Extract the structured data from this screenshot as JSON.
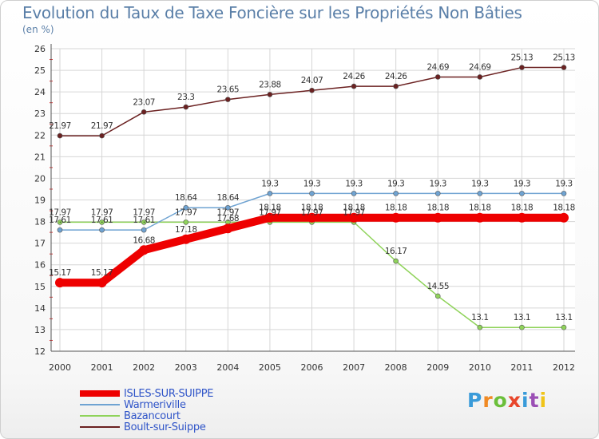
{
  "title": "Evolution du Taux de Taxe Foncière sur les Propriétés Non Bâties",
  "subtitle": "(en %)",
  "brand": {
    "text": "Proxiti",
    "colors": [
      "#3a9bd9",
      "#f08a24",
      "#6bbf3a",
      "#e8462b",
      "#3a9bd9",
      "#9b4fb5",
      "#f0c419"
    ]
  },
  "chart_data": {
    "type": "line",
    "title": "Evolution du Taux de Taxe Foncière sur les Propriétés Non Bâties",
    "ylabel": "(en %)",
    "xlabel": "",
    "ylim": [
      12,
      26
    ],
    "yticks": [
      "12",
      "13",
      "14",
      "15",
      "16",
      "17",
      "18",
      "19",
      "20",
      "21",
      "22",
      "23",
      "24",
      "25",
      "26"
    ],
    "categories": [
      "2000",
      "2001",
      "2002",
      "2003",
      "2004",
      "2005",
      "2006",
      "2007",
      "2008",
      "2009",
      "2010",
      "2011",
      "2012"
    ],
    "series": [
      {
        "name": "ISLES-SUR-SUIPPE",
        "color": "#ee0000",
        "width": 10,
        "marker": 5.5,
        "values": [
          15.17,
          15.17,
          16.68,
          17.18,
          17.68,
          18.18,
          18.18,
          18.18,
          18.18,
          18.18,
          18.18,
          18.18,
          18.18
        ],
        "labels": [
          "15.17",
          "15.17",
          "16.68",
          "17.18",
          "17.68",
          "18.18",
          "18.18",
          "18.18",
          "18.18",
          "18.18",
          "18.18",
          "18.18",
          "18.18"
        ]
      },
      {
        "name": "Warmeriville",
        "color": "#6fa3d2",
        "width": 1.5,
        "marker": 3,
        "values": [
          17.61,
          17.61,
          17.61,
          18.64,
          18.64,
          19.3,
          19.3,
          19.3,
          19.3,
          19.3,
          19.3,
          19.3,
          19.3
        ],
        "labels": [
          "17.61",
          "17.61",
          "17.61",
          "18.64",
          "18.64",
          "19.3",
          "19.3",
          "19.3",
          "19.3",
          "19.3",
          "19.3",
          "19.3",
          "19.3"
        ]
      },
      {
        "name": "Bazancourt",
        "color": "#8fd35a",
        "width": 1.5,
        "marker": 3,
        "values": [
          17.97,
          17.97,
          17.97,
          17.97,
          17.97,
          17.97,
          17.97,
          17.97,
          16.17,
          14.55,
          13.1,
          13.1,
          13.1
        ],
        "labels": [
          "17.97",
          "17.97",
          "17.97",
          "17.97",
          "17.97",
          "17.97",
          "17.97",
          "17.97",
          "16.17",
          "14.55",
          "13.1",
          "13.1",
          "13.1"
        ]
      },
      {
        "name": "Boult-sur-Suippe",
        "color": "#6b2121",
        "width": 1.5,
        "marker": 3,
        "values": [
          21.97,
          21.97,
          23.07,
          23.3,
          23.65,
          23.88,
          24.07,
          24.26,
          24.26,
          24.69,
          24.69,
          25.13,
          25.13
        ],
        "labels": [
          "21.97",
          "21.97",
          "23.07",
          "23.3",
          "23.65",
          "23.88",
          "24.07",
          "24.26",
          "24.26",
          "24.69",
          "24.69",
          "25.13",
          "25.13"
        ]
      }
    ]
  }
}
